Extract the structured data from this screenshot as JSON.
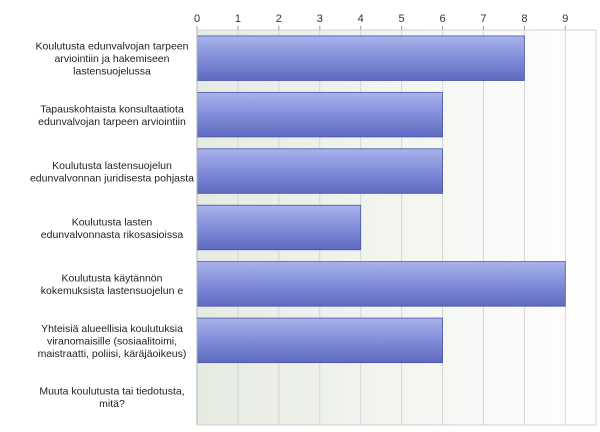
{
  "chart_data": {
    "type": "bar",
    "orientation": "horizontal",
    "title": "",
    "xlabel": "",
    "ylabel": "",
    "xlim": [
      0,
      9.75
    ],
    "ticks": [
      0,
      1,
      2,
      3,
      4,
      5,
      6,
      7,
      8,
      9
    ],
    "grid": true,
    "categories": [
      [
        "Koulutusta edunvalvojan tarpeen",
        "arviointiin ja hakemiseen",
        "lastensuojelussa"
      ],
      [
        "Tapauskohtaista konsultaatiota",
        "edunvalvojan tarpeen arviointiin"
      ],
      [
        "Koulutusta lastensuojelun",
        "edunvalvonnan juridisesta pohjasta"
      ],
      [
        "Koulutusta lasten",
        "edunvalvonnasta rikosasioissa"
      ],
      [
        "Koulutusta käytännön",
        "kokemuksista lastensuojelun e"
      ],
      [
        "Yhteisiä alueellisia koulutuksia",
        "viranomaisille (sosiaalitoimi,",
        "maistraatti, poliisi, käräjäoikeus)"
      ],
      [
        "Muuta koulutusta tai tiedotusta,",
        "mitä?"
      ]
    ],
    "values": [
      8,
      6,
      6,
      4,
      9,
      6,
      0
    ],
    "colors": {
      "bar_light": "#a9b3ec",
      "bar_mid": "#8591dc",
      "bar_dark": "#5e69c0",
      "grid": "#d6d6d6",
      "plot_bg_left": "#e6ebe2",
      "plot_bg_right": "#ffffff"
    }
  }
}
